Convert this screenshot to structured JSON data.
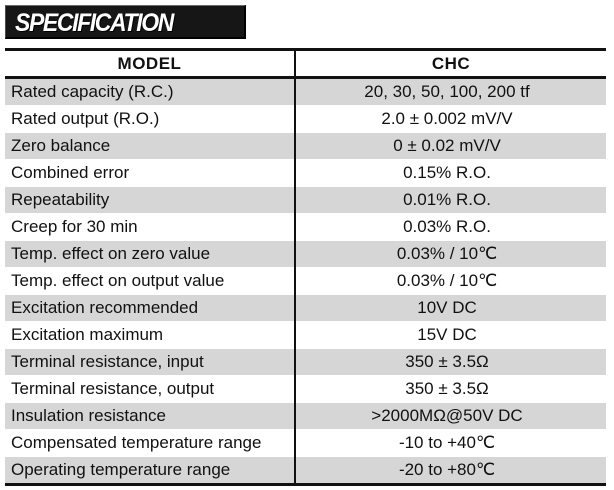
{
  "banner": {
    "title": "SPECIFICATION"
  },
  "table": {
    "header": {
      "left": "MODEL",
      "right": "CHC"
    },
    "rows": [
      {
        "label": "Rated capacity (R.C.)",
        "value": "20, 30, 50, 100, 200 tf"
      },
      {
        "label": "Rated output (R.O.)",
        "value": "2.0 ± 0.002 mV/V"
      },
      {
        "label": "Zero balance",
        "value": "0 ± 0.02 mV/V"
      },
      {
        "label": "Combined error",
        "value": "0.15% R.O."
      },
      {
        "label": "Repeatability",
        "value": "0.01% R.O."
      },
      {
        "label": "Creep for 30 min",
        "value": "0.03% R.O."
      },
      {
        "label": "Temp. effect on zero value",
        "value": "0.03% / 10℃"
      },
      {
        "label": "Temp. effect on output value",
        "value": "0.03% / 10℃"
      },
      {
        "label": "Excitation recommended",
        "value": "10V DC"
      },
      {
        "label": "Excitation maximum",
        "value": "15V DC"
      },
      {
        "label": "Terminal resistance, input",
        "value": "350 ± 3.5Ω"
      },
      {
        "label": "Terminal resistance, output",
        "value": "350 ± 3.5Ω"
      },
      {
        "label": "Insulation resistance",
        "value": ">2000MΩ@50V DC"
      },
      {
        "label": "Compensated temperature range",
        "value": "-10 to +40℃"
      },
      {
        "label": "Operating temperature range",
        "value": "-20 to +80℃"
      }
    ]
  }
}
